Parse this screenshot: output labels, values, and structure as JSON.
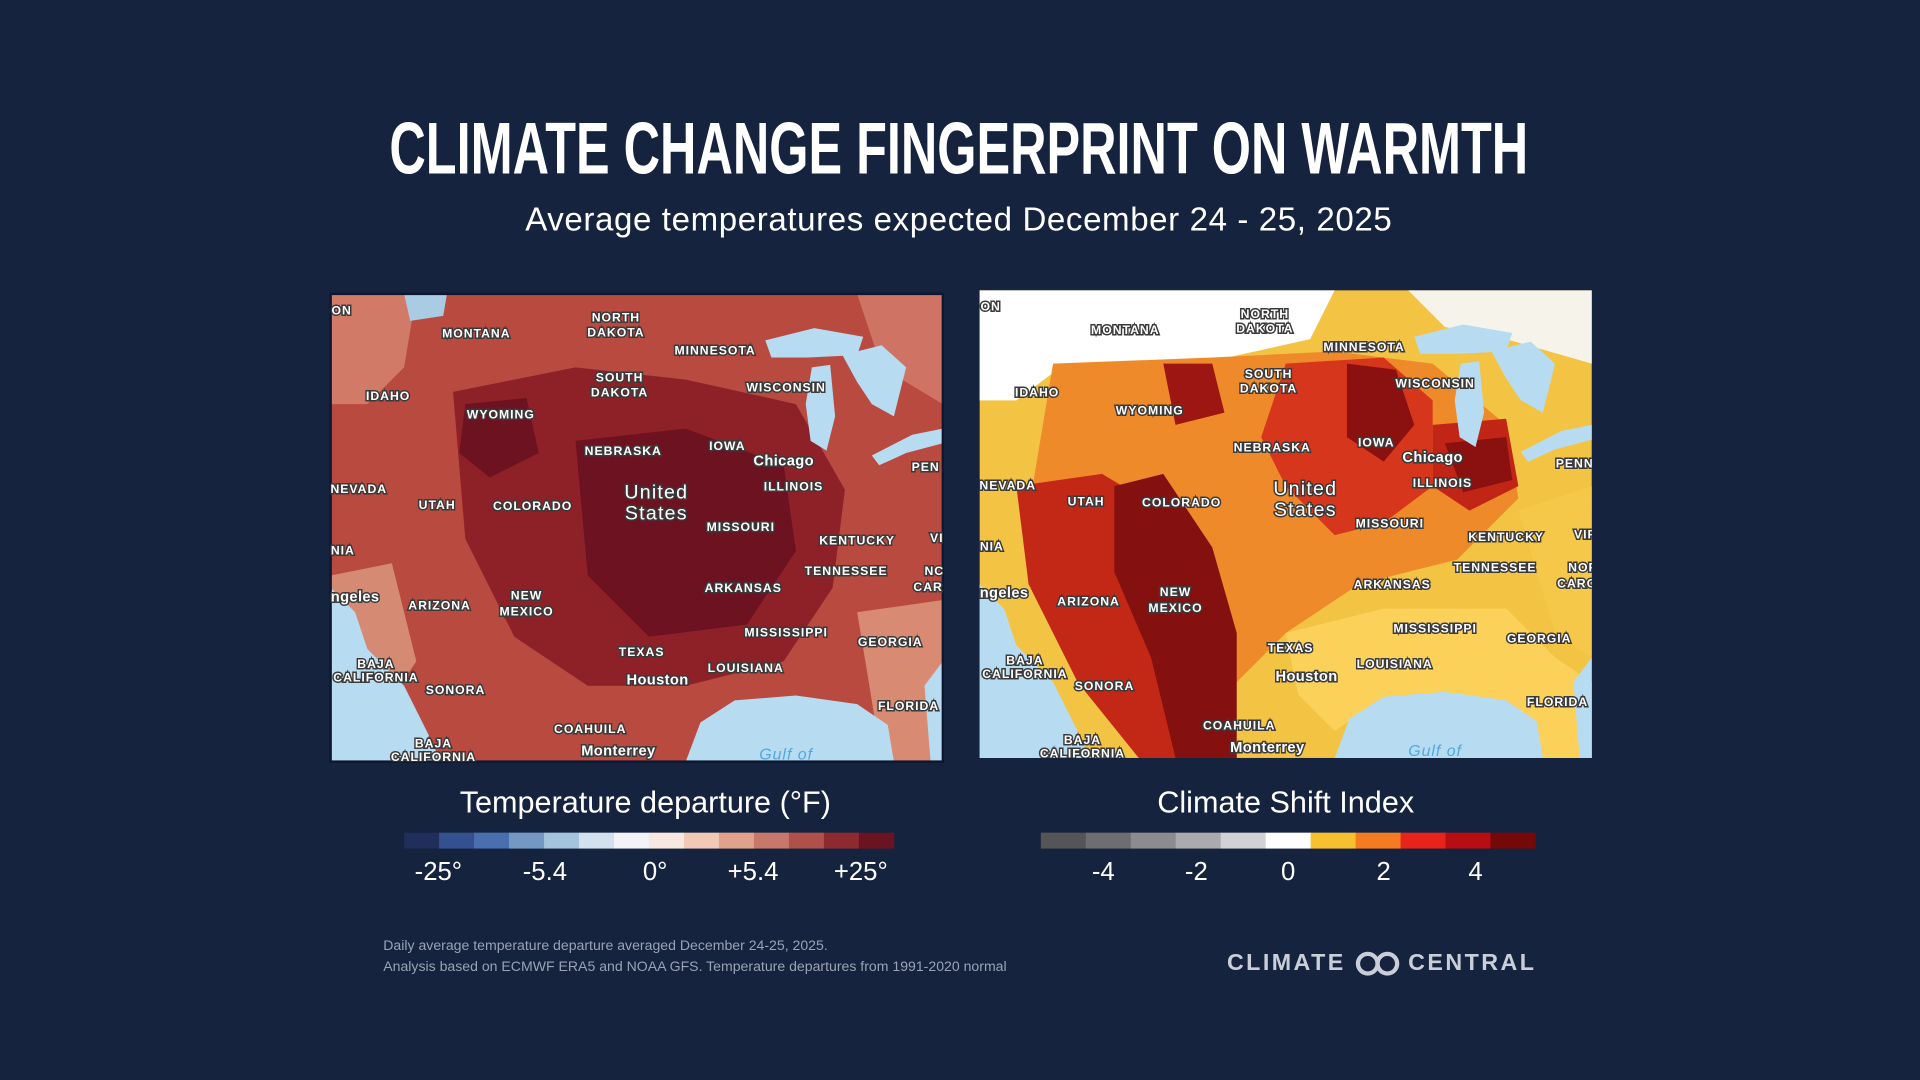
{
  "header": {
    "title": "CLIMATE CHANGE FINGERPRINT ON WARMTH",
    "subtitle": "Average temperatures expected December 24 - 25, 2025"
  },
  "maps": [
    {
      "labels": [
        "ON",
        "MONTANA",
        "NORTH",
        "DAKOTA",
        "MINNESOTA",
        "SOUTH",
        "DAKOTA",
        "IDAHO",
        "WYOMING",
        "WISCONSIN",
        "NEBRASKA",
        "IOWA",
        "Chicago",
        "PEN",
        "NEVADA",
        "UTAH",
        "COLORADO",
        "United",
        "States",
        "ILLINOIS",
        "MISSOURI",
        "KENTUCKY",
        "NIA",
        "TENNESSEE",
        "ngeles",
        "ARIZONA",
        "NEW",
        "MEXICO",
        "ARKANSAS",
        "MISSISSIPPI",
        "GEORGIA",
        "TEXAS",
        "BAJA",
        "CALIFORNIA",
        "SONORA",
        "LOUISIANA",
        "Houston",
        "FLORIDA",
        "COAHUILA",
        "Monterrey",
        "BAJA",
        "CALIFORNIA",
        "Gulf of",
        "VI",
        "NC",
        "CAR"
      ]
    },
    {
      "labels": [
        "ON",
        "MONTANA",
        "NORTH",
        "DAKOTA",
        "MINNESOTA",
        "SOUTH",
        "DAKOTA",
        "IDAHO",
        "WYOMING",
        "WISCONSIN",
        "NEBRASKA",
        "IOWA",
        "Chicago",
        "PENN",
        "NEVADA",
        "UTAH",
        "COLORADO",
        "United",
        "States",
        "ILLINOIS",
        "MISSOURI",
        "KENTUCKY",
        "NIA",
        "TENNESSEE",
        "ngeles",
        "ARIZONA",
        "NEW",
        "MEXICO",
        "ARKANSAS",
        "MISSISSIPPI",
        "GEORGIA",
        "TEXAS",
        "BAJA",
        "CALIFORNIA",
        "SONORA",
        "LOUISIANA",
        "Houston",
        "FLORIDA",
        "COAHUILA",
        "Monterrey",
        "BAJA",
        "CALIFORNIA",
        "Gulf of",
        "VIR",
        "NOR",
        "CARO"
      ]
    }
  ],
  "legends": [
    {
      "title": "Temperature departure (°F)",
      "colors": [
        "#1f2e5a",
        "#34508f",
        "#4a6fae",
        "#7498c4",
        "#a3c4dc",
        "#d3e1ee",
        "#f2f2f7",
        "#f7e8e0",
        "#f2c9b4",
        "#e0a28a",
        "#c8786a",
        "#b0504a",
        "#8c2a30",
        "#6a1420"
      ],
      "labels": [
        "-25°",
        "-5.4",
        "0°",
        "+5.4",
        "+25°"
      ]
    },
    {
      "title": "Climate Shift Index",
      "colors": [
        "#555555",
        "#6e6e6e",
        "#8c8c8c",
        "#ababab",
        "#d2d2d2",
        "#ffffff",
        "#f7c02e",
        "#f47b20",
        "#e8231b",
        "#b80d12",
        "#750808"
      ],
      "labels": [
        "-4",
        "-2",
        "0",
        "2",
        "4"
      ]
    }
  ],
  "footnote": [
    "Daily average temperature departure averaged December 24-25, 2025.",
    "Analysis based on ECMWF ERA5 and NOAA GFS. Temperature departures from 1991-2020 normal"
  ],
  "logo": {
    "left": "CLIMATE",
    "right": "CENTRAL"
  }
}
